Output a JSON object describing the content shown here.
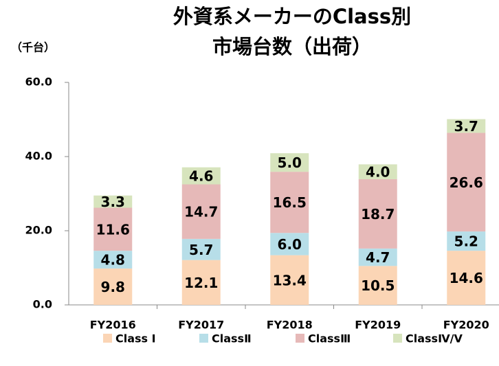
{
  "chart_data": {
    "type": "stacked_bar",
    "title": [
      "外資系メーカーのClass別",
      "市場台数（出荷）"
    ],
    "y_label": "（千台）",
    "categories": [
      "FY2016",
      "FY2017",
      "FY2018",
      "FY2019",
      "FY2020"
    ],
    "series": [
      {
        "name": "Class Ⅰ",
        "color": "#fbd5b5",
        "values": [
          9.8,
          12.1,
          13.4,
          10.5,
          14.6
        ],
        "value_labels": [
          "9.8",
          "12.1",
          "13.4",
          "10.5",
          "14.6"
        ]
      },
      {
        "name": "ClassⅡ",
        "color": "#b7dee8",
        "values": [
          4.8,
          5.7,
          6.0,
          4.7,
          5.2
        ],
        "value_labels": [
          "4.8",
          "5.7",
          "6.0",
          "4.7",
          "5.2"
        ]
      },
      {
        "name": "ClassⅢ",
        "color": "#e6b9b8",
        "values": [
          11.6,
          14.7,
          16.5,
          18.7,
          26.6
        ],
        "value_labels": [
          "11.6",
          "14.7",
          "16.5",
          "18.7",
          "26.6"
        ]
      },
      {
        "name": "ClassⅣ/Ⅴ",
        "color": "#d7e4bd",
        "values": [
          3.3,
          4.6,
          5.0,
          4.0,
          3.7
        ],
        "value_labels": [
          "3.3",
          "4.6",
          "5.0",
          "4.0",
          "3.7"
        ]
      }
    ],
    "ylim": [
      0,
      60
    ],
    "yticks": [
      {
        "value": 0,
        "label": "0.0"
      },
      {
        "value": 20,
        "label": "20.0"
      },
      {
        "value": 40,
        "label": "40.0"
      },
      {
        "value": 60,
        "label": "60.0"
      }
    ],
    "grid": false,
    "legend": "bottom"
  }
}
